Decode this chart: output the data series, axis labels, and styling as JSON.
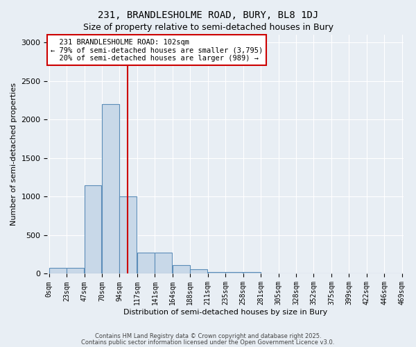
{
  "title1": "231, BRANDLESHOLME ROAD, BURY, BL8 1DJ",
  "title2": "Size of property relative to semi-detached houses in Bury",
  "xlabel": "Distribution of semi-detached houses by size in Bury",
  "ylabel": "Number of semi-detached properties",
  "bar_values": [
    75,
    75,
    1150,
    2200,
    1000,
    270,
    270,
    110,
    60,
    20,
    20,
    20,
    5,
    5,
    5,
    5,
    5,
    5,
    5,
    5
  ],
  "bar_labels": [
    "0sqm",
    "23sqm",
    "47sqm",
    "70sqm",
    "94sqm",
    "117sqm",
    "141sqm",
    "164sqm",
    "188sqm",
    "211sqm",
    "235sqm",
    "258sqm",
    "281sqm",
    "305sqm",
    "328sqm",
    "352sqm",
    "375sqm",
    "399sqm",
    "422sqm",
    "446sqm",
    "469sqm"
  ],
  "bar_color": "#c8d8e8",
  "bar_edge_color": "#5b8db8",
  "property_size": 102,
  "property_label": "231 BRANDLESHOLME ROAD: 102sqm",
  "pct_smaller": 79,
  "n_smaller": 3795,
  "pct_larger": 20,
  "n_larger": 989,
  "vline_color": "#cc0000",
  "annotation_box_color": "#cc0000",
  "ylim": [
    0,
    3100
  ],
  "yticks": [
    0,
    500,
    1000,
    1500,
    2000,
    2500,
    3000
  ],
  "background_color": "#e8eef4",
  "plot_bg_color": "#e8eef4",
  "footer1": "Contains HM Land Registry data © Crown copyright and database right 2025.",
  "footer2": "Contains public sector information licensed under the Open Government Licence v3.0.",
  "bin_width": 23
}
